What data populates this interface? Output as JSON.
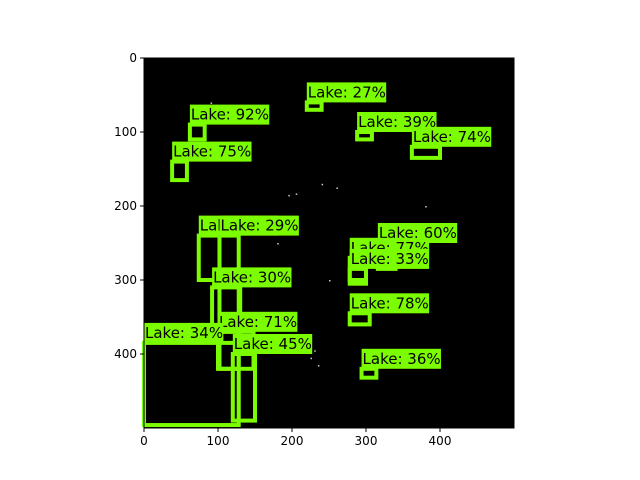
{
  "image": {
    "width": 500,
    "height": 500,
    "background": "#000000",
    "box_color": "#7cfc00",
    "label_fill": "#7cfc00"
  },
  "axes": {
    "x_ticks": [
      0,
      100,
      200,
      300,
      400
    ],
    "y_ticks": [
      0,
      100,
      200,
      300,
      400
    ]
  },
  "detections": [
    {
      "label": "Lake: 27%",
      "x1": 220,
      "y1": 60,
      "x2": 240,
      "y2": 70
    },
    {
      "label": "Lake: 92%",
      "x1": 62,
      "y1": 90,
      "x2": 82,
      "y2": 110
    },
    {
      "label": "Lake: 39%",
      "x1": 288,
      "y1": 100,
      "x2": 308,
      "y2": 110
    },
    {
      "label": "Lake: 74%",
      "x1": 362,
      "y1": 120,
      "x2": 400,
      "y2": 135
    },
    {
      "label": "Lake: 75%",
      "x1": 38,
      "y1": 140,
      "x2": 58,
      "y2": 165
    },
    {
      "label": "Lake: 29%",
      "x1": 74,
      "y1": 240,
      "x2": 102,
      "y2": 300
    },
    {
      "label": "Lake: 29%",
      "x1": 102,
      "y1": 240,
      "x2": 128,
      "y2": 420
    },
    {
      "label": "Lake: 60%",
      "x1": 316,
      "y1": 250,
      "x2": 340,
      "y2": 285
    },
    {
      "label": "Lake: 77%",
      "x1": 278,
      "y1": 270,
      "x2": 300,
      "y2": 300
    },
    {
      "label": "Lake: 33%",
      "x1": 278,
      "y1": 285,
      "x2": 300,
      "y2": 305
    },
    {
      "label": "Lake: 30%",
      "x1": 92,
      "y1": 310,
      "x2": 130,
      "y2": 370
    },
    {
      "label": "Lake: 78%",
      "x1": 278,
      "y1": 345,
      "x2": 305,
      "y2": 360
    },
    {
      "label": "Lake: 71%",
      "x1": 100,
      "y1": 370,
      "x2": 148,
      "y2": 420
    },
    {
      "label": "Lake: 34%",
      "x1": 0,
      "y1": 385,
      "x2": 128,
      "y2": 496
    },
    {
      "label": "Lake: 45%",
      "x1": 120,
      "y1": 400,
      "x2": 150,
      "y2": 490
    },
    {
      "label": "Lake: 36%",
      "x1": 294,
      "y1": 420,
      "x2": 314,
      "y2": 432
    }
  ]
}
